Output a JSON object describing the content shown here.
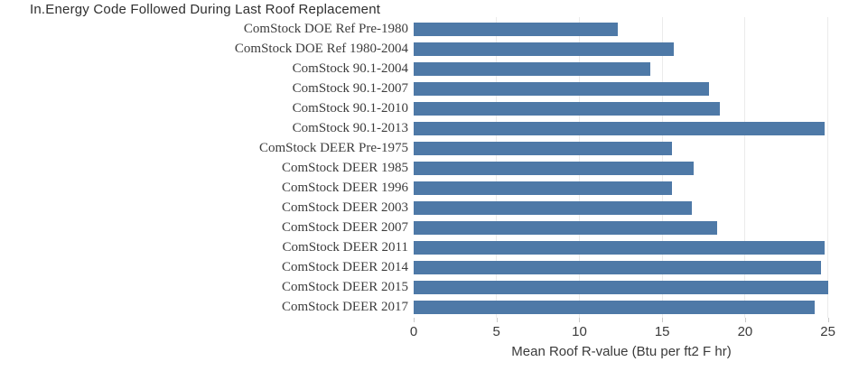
{
  "title": "In.Energy Code Followed During Last Roof Replacement",
  "chart_data": {
    "type": "bar",
    "orientation": "horizontal",
    "title": "In.Energy Code Followed During Last Roof Replacement",
    "categories": [
      "ComStock DOE Ref Pre-1980",
      "ComStock DOE Ref 1980-2004",
      "ComStock 90.1-2004",
      "ComStock 90.1-2007",
      "ComStock 90.1-2010",
      "ComStock 90.1-2013",
      "ComStock DEER Pre-1975",
      "ComStock DEER 1985",
      "ComStock DEER 1996",
      "ComStock DEER 2003",
      "ComStock DEER 2007",
      "ComStock DEER 2011",
      "ComStock DEER 2014",
      "ComStock DEER 2015",
      "ComStock DEER 2017"
    ],
    "values": [
      12.3,
      15.7,
      14.3,
      17.8,
      18.5,
      24.8,
      15.6,
      16.9,
      15.6,
      16.8,
      18.3,
      24.8,
      24.6,
      25.0,
      24.2
    ],
    "xlabel": "Mean Roof R-value (Btu per ft2 F hr)",
    "ylabel": "",
    "x_ticks": [
      0,
      5,
      10,
      15,
      20,
      25
    ],
    "xlim": [
      0,
      26
    ],
    "grid": true,
    "legend": false,
    "bar_color": "#4e79a7",
    "gridline_color": "#ebebeb",
    "tick_color": "#c9c9c9",
    "text_color": "#3d3d3d"
  }
}
